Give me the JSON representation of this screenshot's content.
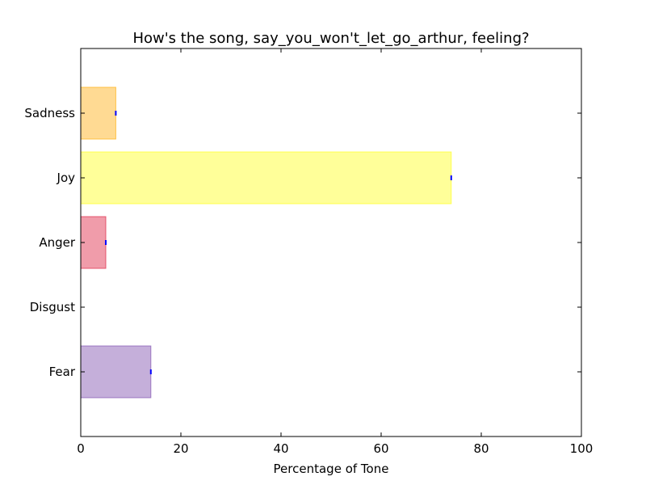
{
  "chart_data": {
    "type": "bar",
    "orientation": "horizontal",
    "title": "How's the song, say_you_won't_let_go_arthur, feeling?",
    "xlabel": "Percentage of Tone",
    "ylabel": "",
    "xlim": [
      0,
      100
    ],
    "xticks": [
      "0",
      "20",
      "40",
      "60",
      "80",
      "100"
    ],
    "categories": [
      "Fear",
      "Disgust",
      "Anger",
      "Joy",
      "Sadness"
    ],
    "values": [
      14,
      0,
      5,
      74,
      7
    ],
    "colors": [
      "#8B5FB5",
      "#7CB342",
      "#E13A55",
      "#FFFF33",
      "#FFB627"
    ],
    "error_marker_color": "#0000ff",
    "grid": false,
    "legend": "none"
  }
}
